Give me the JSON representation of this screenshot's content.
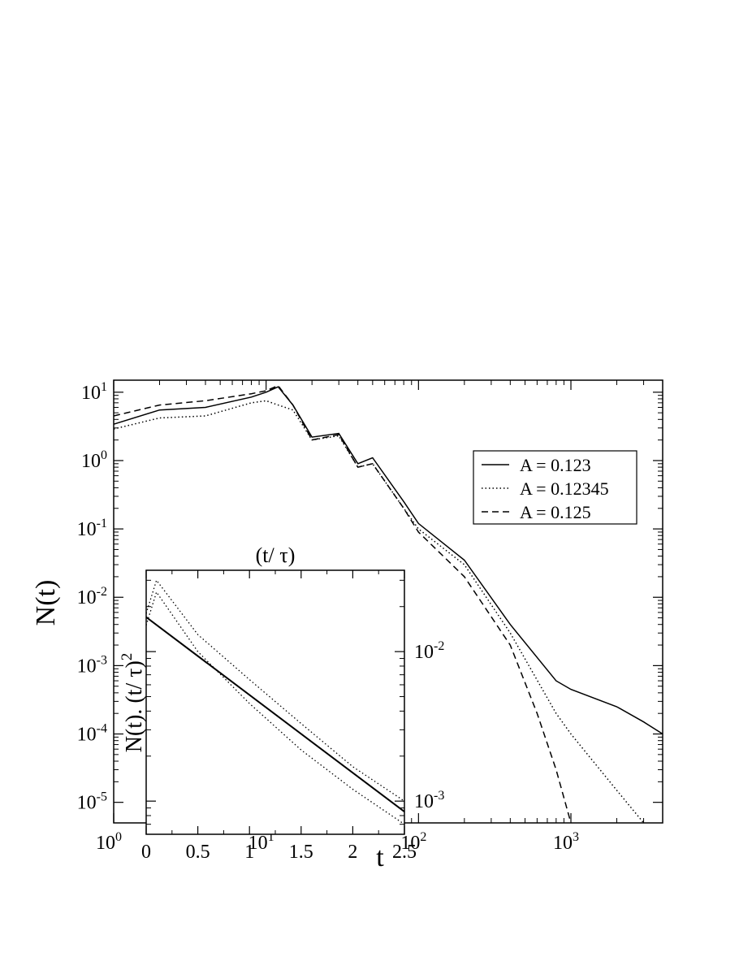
{
  "chart_data": [
    {
      "type": "line",
      "xlabel": "t",
      "ylabel": "N(t)",
      "xscale": "log",
      "yscale": "log",
      "xlim": [
        1,
        4000
      ],
      "ylim": [
        5e-06,
        15
      ],
      "xticks": [
        {
          "base": "10",
          "exp": "0"
        },
        {
          "base": "10",
          "exp": "1"
        },
        {
          "base": "10",
          "exp": "2"
        },
        {
          "base": "10",
          "exp": "3"
        }
      ],
      "yticks": [
        {
          "base": "10",
          "exp": "-5"
        },
        {
          "base": "10",
          "exp": "-4"
        },
        {
          "base": "10",
          "exp": "-3"
        },
        {
          "base": "10",
          "exp": "-2"
        },
        {
          "base": "10",
          "exp": "-1"
        },
        {
          "base": "10",
          "exp": "0"
        },
        {
          "base": "10",
          "exp": "1"
        }
      ],
      "legend_position": "right",
      "series": [
        {
          "name": "A = 0.123",
          "style": "solid",
          "x": [
            1,
            2,
            4,
            8,
            10,
            12,
            15,
            20,
            30,
            40,
            50,
            80,
            100,
            200,
            400,
            800,
            1000,
            2000,
            3000,
            4000
          ],
          "y": [
            3.4,
            5.5,
            6,
            8.5,
            10,
            12,
            6.5,
            2.2,
            2.5,
            0.9,
            1.1,
            0.25,
            0.12,
            0.035,
            0.004,
            0.0006,
            0.00045,
            0.00025,
            0.00015,
            0.0001
          ]
        },
        {
          "name": "A = 0.12345",
          "style": "dotted",
          "x": [
            1,
            2,
            4,
            8,
            10,
            12,
            15,
            20,
            30,
            40,
            50,
            80,
            100,
            200,
            400,
            800,
            1000,
            2000,
            3000
          ],
          "y": [
            2.9,
            4.2,
            4.5,
            7,
            7.5,
            6.5,
            5.5,
            2.0,
            2.3,
            0.8,
            0.9,
            0.2,
            0.1,
            0.03,
            0.003,
            0.0002,
            0.0001,
            1.5e-05,
            5e-06
          ]
        },
        {
          "name": "A = 0.125",
          "style": "dashed",
          "x": [
            1,
            2,
            4,
            8,
            10,
            12,
            15,
            20,
            30,
            40,
            50,
            80,
            100,
            200,
            400,
            600,
            800,
            1000
          ],
          "y": [
            4.5,
            6.5,
            7.5,
            9.5,
            10.5,
            12.5,
            6.5,
            2.0,
            2.4,
            0.8,
            0.9,
            0.2,
            0.09,
            0.02,
            0.002,
            0.0002,
            3e-05,
            5e-06
          ]
        }
      ]
    },
    {
      "type": "line",
      "title": "(t/ τ)",
      "ylabel": "N(t). (t/ τ)",
      "ylabel_sup": "2",
      "xscale": "linear",
      "yscale": "log",
      "xlim": [
        0,
        2.5
      ],
      "ylim": [
        0.0006,
        0.035
      ],
      "xticks": [
        "0",
        "0.5",
        "1",
        "1.5",
        "2",
        "2.5"
      ],
      "yticks": [
        {
          "base": "10",
          "exp": "-2"
        },
        {
          "base": "10",
          "exp": "-3"
        }
      ],
      "series": [
        {
          "style": "solid",
          "x": [
            0,
            2.5
          ],
          "y": [
            0.017,
            0.00085
          ]
        },
        {
          "style": "dotted",
          "x": [
            0,
            0.1,
            0.5,
            1,
            1.5,
            2,
            2.5
          ],
          "y": [
            0.018,
            0.03,
            0.013,
            0.0065,
            0.0033,
            0.0017,
            0.001
          ]
        },
        {
          "style": "dotted",
          "x": [
            0,
            0.1,
            0.5,
            1,
            1.5,
            2,
            2.5
          ],
          "y": [
            0.015,
            0.025,
            0.01,
            0.0045,
            0.0022,
            0.0012,
            0.0007
          ]
        }
      ]
    }
  ]
}
